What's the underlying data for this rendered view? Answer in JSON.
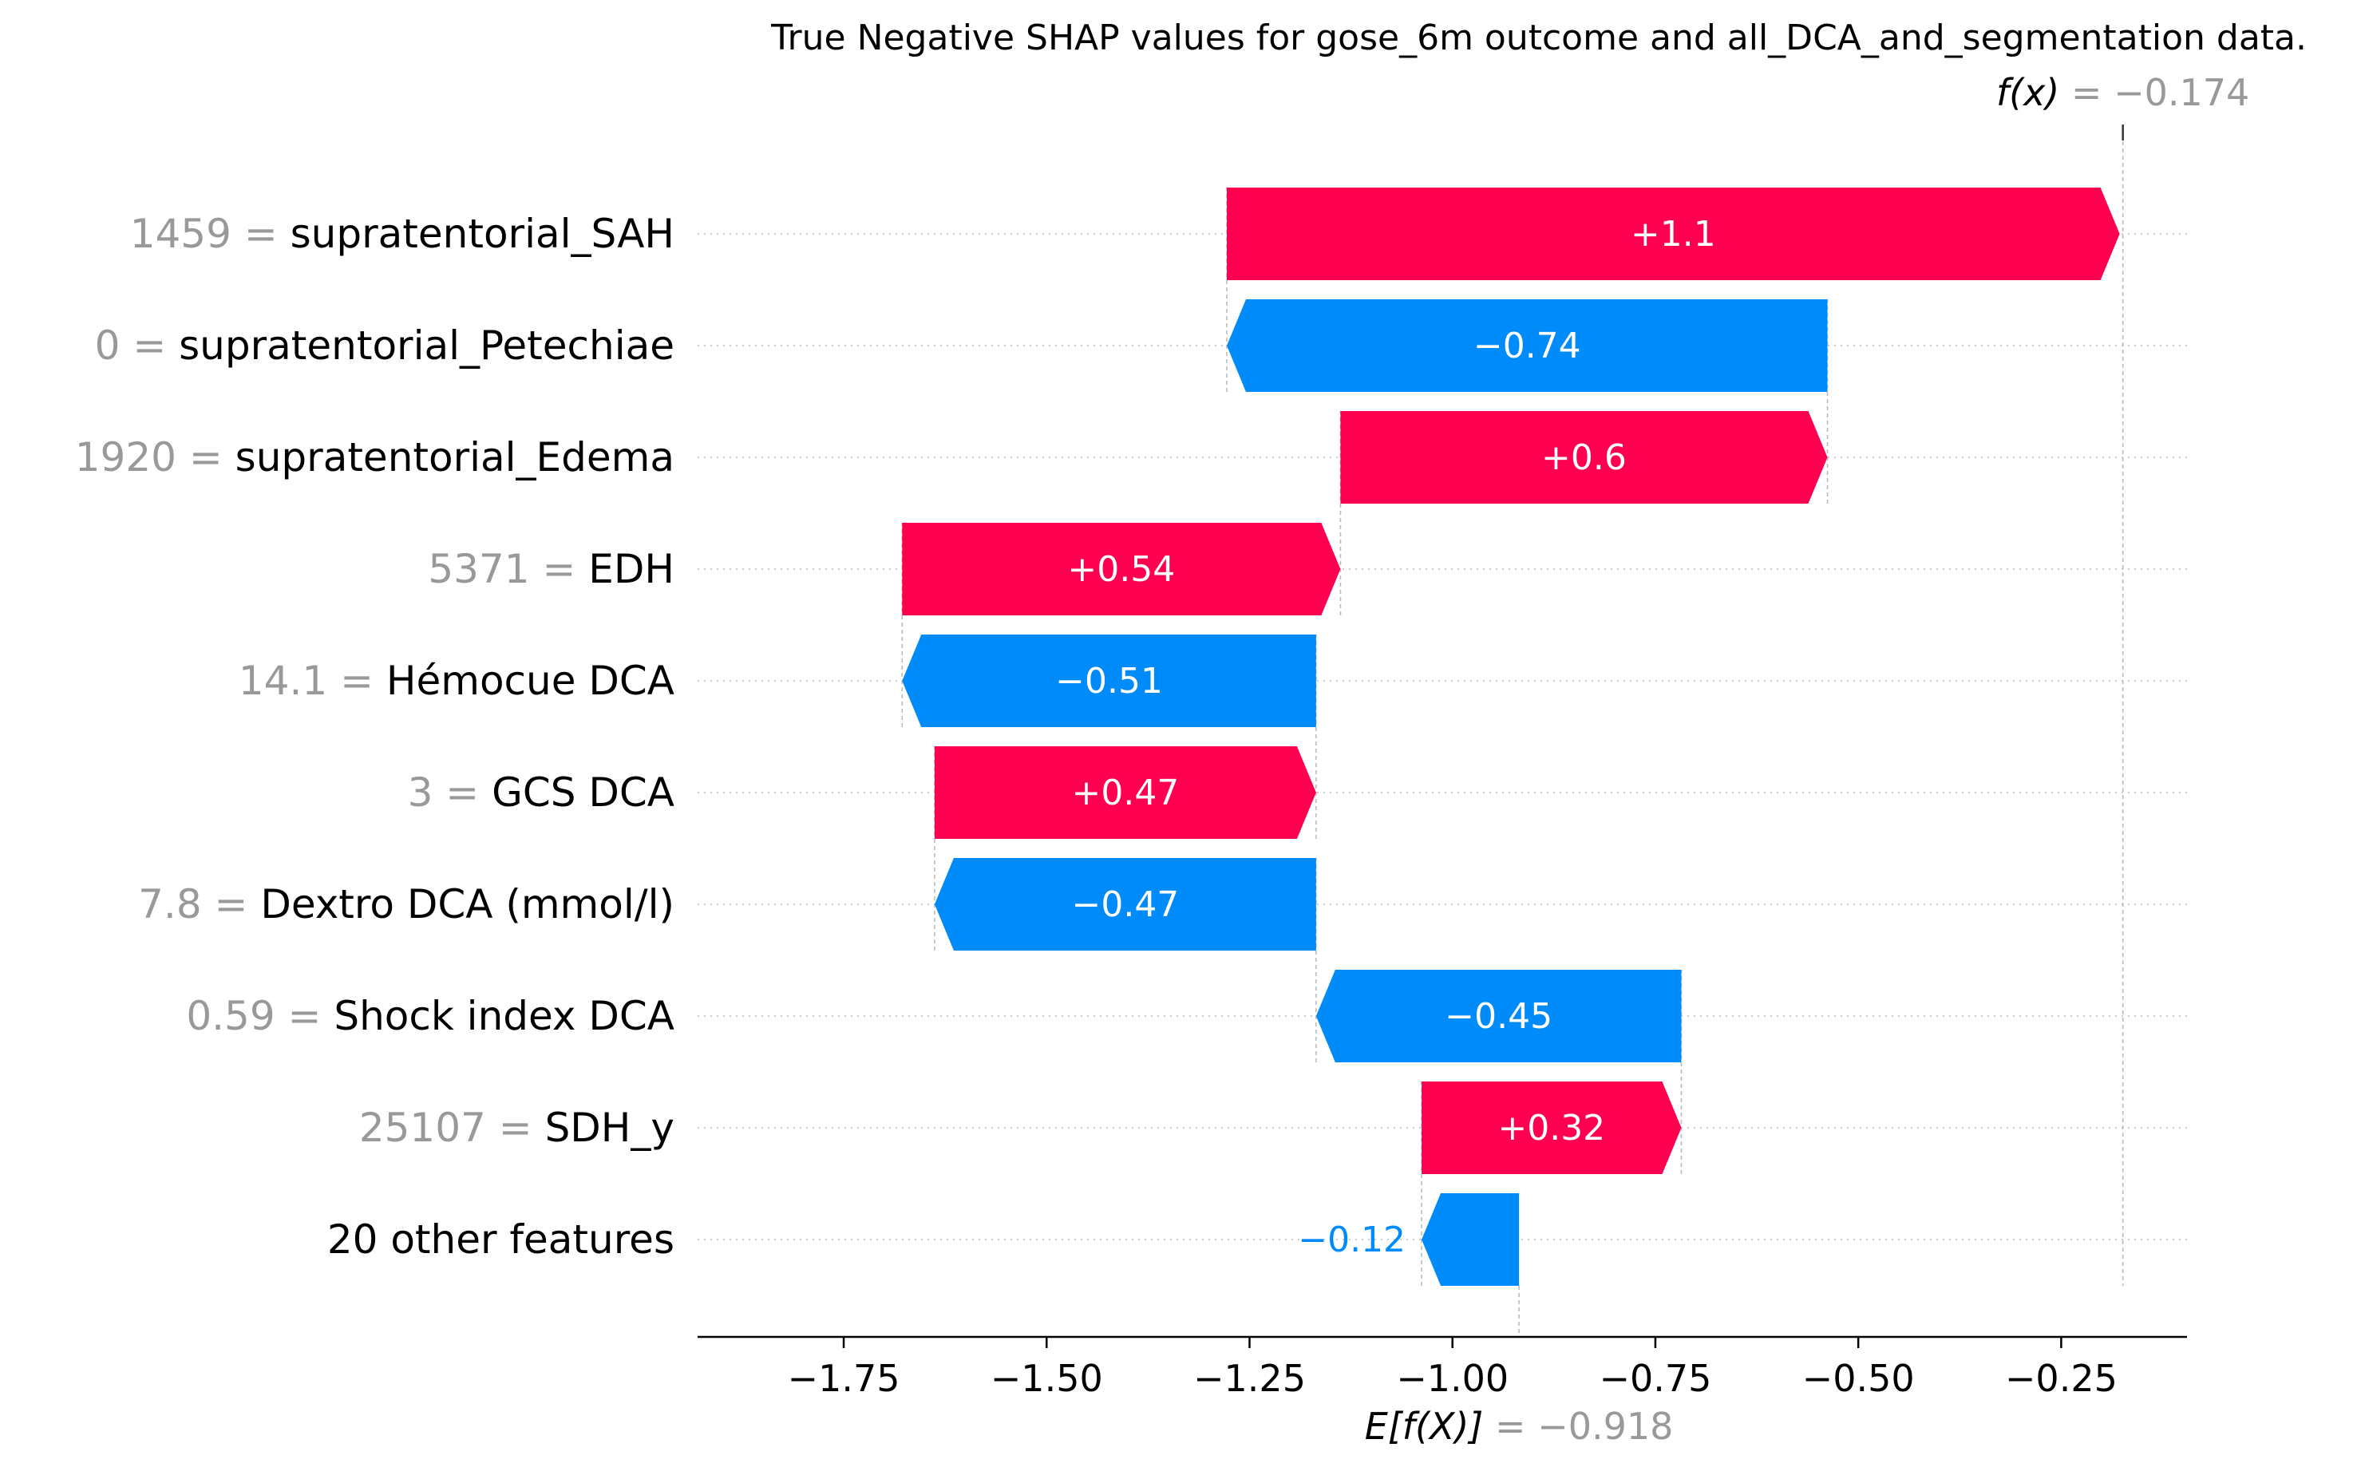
{
  "chart_data": {
    "type": "waterfall",
    "title": "True Negative SHAP values for gose_6m outcome and all_DCA_and_segmentation data.",
    "base_value": -0.918,
    "base_label_value": "−0.918",
    "fx_value": -0.174,
    "fx_label_value": "−0.174",
    "features": [
      {
        "feature": "supratentorial_SAH",
        "value": "1459",
        "shap": 1.1,
        "label": "+1.1"
      },
      {
        "feature": "supratentorial_Petechiae",
        "value": "0",
        "shap": -0.74,
        "label": "−0.74"
      },
      {
        "feature": "supratentorial_Edema",
        "value": "1920",
        "shap": 0.6,
        "label": "+0.6"
      },
      {
        "feature": "EDH",
        "value": "5371",
        "shap": 0.54,
        "label": "+0.54"
      },
      {
        "feature": "Hémocue DCA",
        "value": "14.1",
        "shap": -0.51,
        "label": "−0.51"
      },
      {
        "feature": "GCS DCA",
        "value": "3",
        "shap": 0.47,
        "label": "+0.47"
      },
      {
        "feature": "Dextro DCA (mmol/l)",
        "value": "7.8",
        "shap": -0.47,
        "label": "−0.47"
      },
      {
        "feature": "Shock index DCA",
        "value": "0.59",
        "shap": -0.45,
        "label": "−0.45"
      },
      {
        "feature": "SDH_y",
        "value": "25107",
        "shap": 0.32,
        "label": "+0.32"
      },
      {
        "feature": "20 other features",
        "value": "",
        "shap": -0.12,
        "label": "−0.12"
      }
    ],
    "xlim": [
      -1.93,
      -0.095
    ],
    "xticks": [
      -1.75,
      -1.5,
      -1.25,
      -1.0,
      -0.75,
      -0.5,
      -0.25
    ],
    "xtick_labels": [
      "−1.75",
      "−1.50",
      "−1.25",
      "−1.00",
      "−0.75",
      "−0.50",
      "−0.25"
    ],
    "colors": {
      "positive": "#ff0051",
      "negative": "#008bfb",
      "value_text": "#999999",
      "text": "#000000"
    }
  }
}
